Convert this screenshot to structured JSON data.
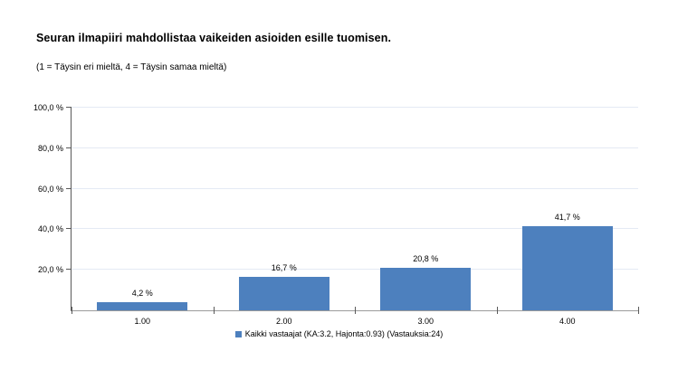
{
  "header": {
    "title": "Seuran ilmapiiri mahdollistaa vaikeiden asioiden esille tuomisen.",
    "subtitle": "(1 = Täysin eri mieltä, 4 = Täysin samaa mieltä)"
  },
  "legend": {
    "label": "Kaikki vastaajat (KA:3.2, Hajonta:0.93) (Vastauksia:24)"
  },
  "chart_data": {
    "type": "bar",
    "title": "Seuran ilmapiiri mahdollistaa vaikeiden asioiden esille tuomisen.",
    "subtitle": "(1 = Täysin eri mieltä, 4 = Täysin samaa mieltä)",
    "categories": [
      "1.00",
      "2.00",
      "3.00",
      "4.00"
    ],
    "values": [
      4.2,
      16.7,
      20.8,
      41.7
    ],
    "value_labels": [
      "4,2 %",
      "16,7 %",
      "20,8 %",
      "41,7 %"
    ],
    "series_name": "Kaikki vastaajat (KA:3.2, Hajonta:0.93) (Vastauksia:24)",
    "stats": {
      "mean": 3.2,
      "std": 0.93,
      "responses": 24
    },
    "xlabel": "",
    "ylabel": "",
    "ylim": [
      0,
      100
    ],
    "yticks": [
      20,
      40,
      60,
      80,
      100
    ],
    "ytick_labels": [
      "20,0 %",
      "40,0 %",
      "60,0 %",
      "80,0 %",
      "100,0 %"
    ],
    "grid": true,
    "legend_position": "bottom"
  },
  "colors": {
    "bar": "#4d80be",
    "gridline": "#e4eaf4",
    "y_axis": "#5a5a5a",
    "x_axis": "#9b9b9b",
    "tick": "#5a5a5a",
    "text": "#000000"
  }
}
